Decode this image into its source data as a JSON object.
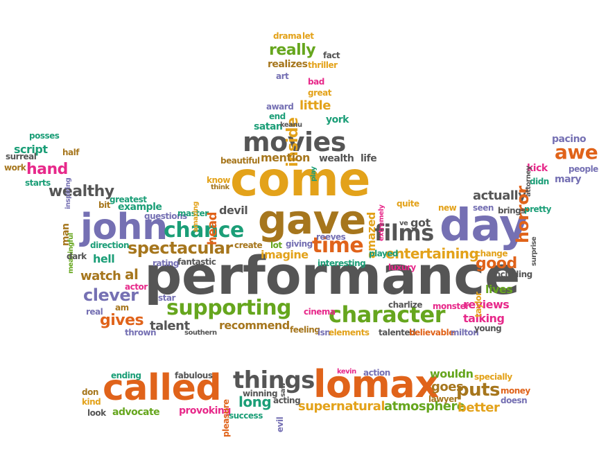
{
  "palette": {
    "grey": "#555555",
    "orange": "#e0631a",
    "gold": "#e3a21a",
    "green": "#66a61e",
    "purple": "#7570b3",
    "magenta": "#e7298a",
    "teal": "#1b9e77",
    "brown": "#a6761d"
  },
  "words": [
    {
      "text": "performance",
      "color": "grey"
    },
    {
      "text": "come",
      "color": "gold"
    },
    {
      "text": "gave",
      "color": "brown"
    },
    {
      "text": "day",
      "color": "purple"
    },
    {
      "text": "john",
      "color": "purple"
    },
    {
      "text": "chance",
      "color": "teal"
    },
    {
      "text": "called",
      "color": "orange"
    },
    {
      "text": "lomax",
      "color": "orange"
    },
    {
      "text": "movies",
      "color": "grey"
    },
    {
      "text": "character",
      "color": "green"
    },
    {
      "text": "supporting",
      "color": "green"
    },
    {
      "text": "films",
      "color": "grey"
    },
    {
      "text": "things",
      "color": "grey"
    },
    {
      "text": "time",
      "color": "orange"
    },
    {
      "text": "spectacular",
      "color": "brown"
    },
    {
      "text": "entertaining",
      "color": "gold"
    },
    {
      "text": "clever",
      "color": "purple"
    },
    {
      "text": "gives",
      "color": "orange"
    },
    {
      "text": "talent",
      "color": "grey"
    },
    {
      "text": "recommend",
      "color": "brown"
    },
    {
      "text": "good",
      "color": "orange"
    },
    {
      "text": "actually",
      "color": "grey"
    },
    {
      "text": "horror",
      "color": "orange"
    },
    {
      "text": "awe",
      "color": "orange"
    },
    {
      "text": "wealthy",
      "color": "grey"
    },
    {
      "text": "hand",
      "color": "magenta"
    },
    {
      "text": "script",
      "color": "teal"
    },
    {
      "text": "really",
      "color": "green"
    },
    {
      "text": "inside",
      "color": "gold"
    },
    {
      "text": "little",
      "color": "gold"
    },
    {
      "text": "mention",
      "color": "brown"
    },
    {
      "text": "imagine",
      "color": "gold"
    },
    {
      "text": "puts",
      "color": "brown"
    },
    {
      "text": "goes",
      "color": "brown"
    },
    {
      "text": "wouldn",
      "color": "green"
    },
    {
      "text": "long",
      "color": "teal"
    },
    {
      "text": "supernatural",
      "color": "gold"
    },
    {
      "text": "atmosphere",
      "color": "green"
    },
    {
      "text": "better",
      "color": "gold"
    },
    {
      "text": "advocate",
      "color": "green"
    },
    {
      "text": "provoking",
      "color": "magenta"
    },
    {
      "text": "watch",
      "color": "brown"
    },
    {
      "text": "al",
      "color": "brown"
    },
    {
      "text": "hell",
      "color": "teal"
    },
    {
      "text": "devil",
      "color": "grey"
    },
    {
      "text": "head",
      "color": "orange"
    },
    {
      "text": "amazed",
      "color": "gold"
    },
    {
      "text": "talking",
      "color": "magenta"
    },
    {
      "text": "reviews",
      "color": "magenta"
    },
    {
      "text": "lives",
      "color": "green"
    },
    {
      "text": "got",
      "color": "grey"
    },
    {
      "text": "example",
      "color": "teal"
    },
    {
      "text": "man",
      "color": "brown"
    },
    {
      "text": "wealth",
      "color": "grey"
    },
    {
      "text": "life",
      "color": "grey"
    },
    {
      "text": "kick",
      "color": "magenta"
    },
    {
      "text": "mary",
      "color": "purple"
    },
    {
      "text": "pacino",
      "color": "purple"
    },
    {
      "text": "people",
      "color": "purple"
    },
    {
      "text": "satan",
      "color": "teal"
    },
    {
      "text": "york",
      "color": "teal"
    },
    {
      "text": "drama",
      "color": "gold"
    },
    {
      "text": "let",
      "color": "gold"
    },
    {
      "text": "fact",
      "color": "grey"
    },
    {
      "text": "realizes",
      "color": "brown"
    },
    {
      "text": "thriller",
      "color": "gold"
    },
    {
      "text": "art",
      "color": "purple"
    },
    {
      "text": "bad",
      "color": "magenta"
    },
    {
      "text": "great",
      "color": "gold"
    },
    {
      "text": "award",
      "color": "purple"
    },
    {
      "text": "end",
      "color": "teal"
    },
    {
      "text": "keanu",
      "color": "grey"
    },
    {
      "text": "posses",
      "color": "teal"
    },
    {
      "text": "half",
      "color": "brown"
    },
    {
      "text": "surreal",
      "color": "grey"
    },
    {
      "text": "work",
      "color": "brown"
    },
    {
      "text": "starts",
      "color": "teal"
    },
    {
      "text": "inspiring",
      "color": "purple"
    },
    {
      "text": "beautiful",
      "color": "brown"
    },
    {
      "text": "play",
      "color": "teal"
    },
    {
      "text": "know",
      "color": "gold"
    },
    {
      "text": "think",
      "color": "brown"
    },
    {
      "text": "greatest",
      "color": "teal"
    },
    {
      "text": "bit",
      "color": "brown"
    },
    {
      "text": "questions",
      "color": "purple"
    },
    {
      "text": "master",
      "color": "teal"
    },
    {
      "text": "amazing",
      "color": "gold"
    },
    {
      "text": "meaningful",
      "color": "green"
    },
    {
      "text": "direction",
      "color": "teal"
    },
    {
      "text": "dark",
      "color": "grey"
    },
    {
      "text": "create",
      "color": "brown"
    },
    {
      "text": "rating",
      "color": "purple"
    },
    {
      "text": "fantastic",
      "color": "grey"
    },
    {
      "text": "lot",
      "color": "green"
    },
    {
      "text": "giving",
      "color": "purple"
    },
    {
      "text": "reeves",
      "color": "purple"
    },
    {
      "text": "interesting",
      "color": "teal"
    },
    {
      "text": "played",
      "color": "teal"
    },
    {
      "text": "ve",
      "color": "grey"
    },
    {
      "text": "extremely",
      "color": "magenta"
    },
    {
      "text": "quite",
      "color": "gold"
    },
    {
      "text": "didn",
      "color": "teal"
    },
    {
      "text": "attorney",
      "color": "grey"
    },
    {
      "text": "new",
      "color": "gold"
    },
    {
      "text": "seen",
      "color": "purple"
    },
    {
      "text": "brings",
      "color": "grey"
    },
    {
      "text": "pretty",
      "color": "teal"
    },
    {
      "text": "surprise",
      "color": "grey"
    },
    {
      "text": "change",
      "color": "gold"
    },
    {
      "text": "luxury",
      "color": "magenta"
    },
    {
      "text": "including",
      "color": "grey"
    },
    {
      "text": "taylor",
      "color": "gold"
    },
    {
      "text": "actor",
      "color": "magenta"
    },
    {
      "text": "star",
      "color": "purple"
    },
    {
      "text": "am",
      "color": "brown"
    },
    {
      "text": "real",
      "color": "purple"
    },
    {
      "text": "thrown",
      "color": "purple"
    },
    {
      "text": "southern",
      "color": "grey"
    },
    {
      "text": "feeling",
      "color": "brown"
    },
    {
      "text": "isn",
      "color": "purple"
    },
    {
      "text": "elements",
      "color": "gold"
    },
    {
      "text": "cinema",
      "color": "magenta"
    },
    {
      "text": "charlize",
      "color": "grey"
    },
    {
      "text": "talented",
      "color": "grey"
    },
    {
      "text": "believable",
      "color": "orange"
    },
    {
      "text": "monster",
      "color": "magenta"
    },
    {
      "text": "milton",
      "color": "purple"
    },
    {
      "text": "young",
      "color": "grey"
    },
    {
      "text": "ending",
      "color": "teal"
    },
    {
      "text": "fabulous",
      "color": "grey"
    },
    {
      "text": "kevin",
      "color": "magenta"
    },
    {
      "text": "action",
      "color": "purple"
    },
    {
      "text": "specially",
      "color": "gold"
    },
    {
      "text": "don",
      "color": "brown"
    },
    {
      "text": "kind",
      "color": "gold"
    },
    {
      "text": "look",
      "color": "grey"
    },
    {
      "text": "pleasure",
      "color": "orange"
    },
    {
      "text": "winning",
      "color": "grey"
    },
    {
      "text": "acting",
      "color": "grey"
    },
    {
      "text": "saw",
      "color": "grey"
    },
    {
      "text": "evil",
      "color": "purple"
    },
    {
      "text": "success",
      "color": "teal"
    },
    {
      "text": "lawyer",
      "color": "brown"
    },
    {
      "text": "money",
      "color": "orange"
    },
    {
      "text": "doesn",
      "color": "purple"
    }
  ]
}
